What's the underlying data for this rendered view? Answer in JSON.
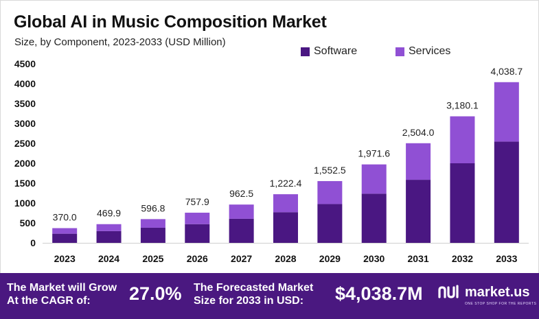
{
  "header": {
    "title": "Global AI in Music Composition Market",
    "subtitle": "Size, by Component, 2023-2033 (USD Million)"
  },
  "legend": {
    "software_label": "Software",
    "services_label": "Services"
  },
  "colors": {
    "software": "#4a1782",
    "services": "#9050d4",
    "footer_bg": "#4a1880"
  },
  "chart_data": {
    "type": "bar",
    "stacked": true,
    "title": "Global AI in Music Composition Market",
    "subtitle": "Size, by Component, 2023-2033 (USD Million)",
    "categories": [
      "2023",
      "2024",
      "2025",
      "2026",
      "2027",
      "2028",
      "2029",
      "2030",
      "2031",
      "2032",
      "2033"
    ],
    "series": [
      {
        "name": "Software",
        "values": [
          230,
          295,
          380,
          470,
          605,
          770,
          975,
          1235,
          1585,
          2000,
          2545
        ]
      },
      {
        "name": "Services",
        "values": [
          140,
          174.9,
          216.8,
          287.9,
          357.5,
          452.4,
          577.5,
          736.6,
          919,
          1180.1,
          1493.7
        ]
      }
    ],
    "totals": [
      370.0,
      469.9,
      596.8,
      757.9,
      962.5,
      1222.4,
      1552.5,
      1971.6,
      2504.0,
      3180.1,
      4038.7
    ],
    "total_labels": [
      "370.0",
      "469.9",
      "596.8",
      "757.9",
      "962.5",
      "1,222.4",
      "1,552.5",
      "1,971.6",
      "2,504.0",
      "3,180.1",
      "4,038.7"
    ],
    "y_ticks": [
      0,
      500,
      1000,
      1500,
      2000,
      2500,
      3000,
      3500,
      4000,
      4500
    ],
    "y_tick_labels": [
      "0",
      "500",
      "1000",
      "1500",
      "2000",
      "2500",
      "3000",
      "3500",
      "4000",
      "4500"
    ],
    "ylim": [
      0,
      4500
    ],
    "xlabel": "",
    "ylabel": "",
    "grid": false,
    "legend_position": "top-right"
  },
  "footer": {
    "cagr_text_line1": "The Market will Grow",
    "cagr_text_line2": "At the CAGR of:",
    "cagr_value": "27.0%",
    "forecast_text_line1": "The Forecasted Market",
    "forecast_text_line2": "Size for 2033 in USD:",
    "forecast_value": "$4,038.7M",
    "logo_name": "market.us",
    "logo_tagline": "ONE STOP SHOP FOR THE REPORTS"
  }
}
